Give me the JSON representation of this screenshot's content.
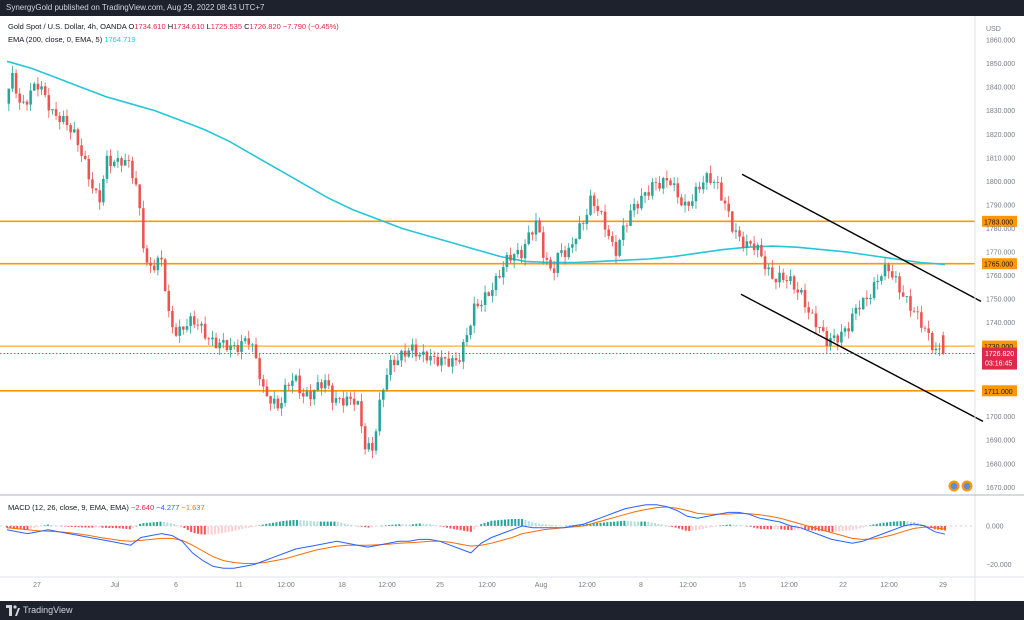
{
  "header": {
    "published_by": "SynergyGold published on TradingView.com, Aug 29, 2022 08:43 UTC+7"
  },
  "footer": {
    "brand": "TradingView"
  },
  "legend": {
    "symbol": "Gold Spot / U.S. Dollar, 4h, OANDA",
    "o_label": "O",
    "o": "1734.610",
    "h_label": "H",
    "h": "1734.610",
    "l_label": "L",
    "l": "1725.535",
    "c_label": "C",
    "c": "1726.820",
    "change": "−7.790 (−0.45%)",
    "ema_label": "EMA (200, close, 0, EMA, 5)",
    "ema_value": "1764.719",
    "macd_label": "MACD (12, 26, close, 9, EMA, EMA)",
    "macd_hist": "−2.640",
    "macd_line": "−4.277",
    "macd_signal": "−1.637"
  },
  "price_axis": {
    "currency": "USD",
    "ticks": [
      "1860.000",
      "1850.000",
      "1840.000",
      "1830.000",
      "1820.000",
      "1810.000",
      "1800.000",
      "1790.000",
      "1780.000",
      "1770.000",
      "1760.000",
      "1750.000",
      "1740.000",
      "1700.000",
      "1690.000",
      "1680.000",
      "1670.000"
    ],
    "levels": [
      "1783.000",
      "1765.000",
      "1730.000",
      "1711.000"
    ],
    "last_price": "1726.820",
    "countdown": "03:16:45"
  },
  "macd_axis": {
    "ticks": [
      "0.000",
      "−20.000"
    ]
  },
  "time_axis": {
    "labels": [
      "27",
      "Jul",
      "6",
      "11",
      "12:00",
      "18",
      "12:00",
      "25",
      "12:00",
      "Aug",
      "12:00",
      "8",
      "12:00",
      "15",
      "12:00",
      "22",
      "12:00",
      "29"
    ]
  },
  "colors": {
    "up": "#26a69a",
    "down": "#ef5350",
    "ema": "#26c6da",
    "level": "#ff9800",
    "trendline": "#000000",
    "macd": "#2962ff",
    "signal": "#ff6d00",
    "hist_pos_strong": "#26a69a",
    "hist_pos_weak": "#b2dfdb",
    "hist_neg_strong": "#ff5252",
    "hist_neg_weak": "#ffcdd2",
    "last_price": "#e0294a"
  },
  "chart_data": {
    "type": "candlestick",
    "symbol": "Gold Spot / U.S. Dollar",
    "timeframe": "4h",
    "ylim": [
      1668,
      1866
    ],
    "horizontal_levels": [
      1783,
      1765,
      1730,
      1711
    ],
    "ema200": [
      1851,
      1848,
      1844,
      1840,
      1836,
      1833,
      1830,
      1826,
      1822,
      1817,
      1811,
      1805,
      1799,
      1793,
      1788,
      1784,
      1780,
      1777,
      1774,
      1771,
      1768,
      1766,
      1765.5,
      1765.5,
      1766,
      1766.5,
      1767,
      1768,
      1769.5,
      1771,
      1772,
      1772.5,
      1772,
      1771,
      1770,
      1768.5,
      1767,
      1765.5,
      1764.7
    ],
    "path": [
      1833,
      1844,
      1832,
      1837,
      1841,
      1836,
      1830,
      1828,
      1823,
      1818,
      1811,
      1800,
      1790,
      1808,
      1809,
      1810,
      1806,
      1793,
      1765,
      1765,
      1766,
      1740,
      1736,
      1740,
      1740,
      1737,
      1734,
      1732,
      1730,
      1728,
      1731,
      1735,
      1725,
      1710,
      1708,
      1705,
      1712,
      1716,
      1710,
      1710,
      1712,
      1714,
      1708,
      1708,
      1706,
      1706,
      1689,
      1687,
      1706,
      1720,
      1725,
      1728,
      1728,
      1725,
      1727,
      1725,
      1723,
      1722,
      1725,
      1735,
      1745,
      1748,
      1754,
      1760,
      1765,
      1768,
      1770,
      1778,
      1782,
      1766,
      1762,
      1772,
      1768,
      1776,
      1784,
      1794,
      1786,
      1778,
      1770,
      1780,
      1786,
      1790,
      1796,
      1800,
      1798,
      1800,
      1795,
      1790,
      1792,
      1798,
      1803,
      1800,
      1790,
      1780,
      1776,
      1774,
      1772,
      1765,
      1760,
      1760,
      1758,
      1754,
      1752,
      1744,
      1738,
      1731,
      1734,
      1736,
      1738,
      1746,
      1750,
      1755,
      1760,
      1762,
      1758,
      1752,
      1745,
      1740,
      1736,
      1729,
      1726.8
    ],
    "last": {
      "open": 1734.61,
      "high": 1734.61,
      "low": 1725.535,
      "close": 1726.82,
      "change": -7.79,
      "change_pct": -0.45
    },
    "ema_last": 1764.719,
    "macd_last": {
      "histogram": -2.64,
      "macd": -4.277,
      "signal": -1.637
    },
    "macd_ylim": [
      -26,
      15
    ],
    "macd_line": [
      -2,
      -3,
      -4,
      -3,
      -2,
      -3,
      -4,
      -5,
      -6,
      -7,
      -8,
      -9,
      -10,
      -6,
      -5,
      -4,
      -5,
      -8,
      -14,
      -18,
      -21,
      -22,
      -22,
      -21,
      -20,
      -18,
      -16,
      -14,
      -12,
      -11,
      -10,
      -9,
      -8,
      -9,
      -10,
      -11,
      -10,
      -9,
      -8,
      -8,
      -7,
      -7,
      -8,
      -10,
      -12,
      -14,
      -9,
      -6,
      -4,
      -2,
      0,
      -1,
      -1,
      -1,
      -1,
      0,
      1,
      3,
      5,
      7,
      9,
      10,
      11,
      11,
      10,
      8,
      5,
      4,
      5,
      6,
      7,
      7,
      6,
      4,
      3,
      2,
      0,
      -1,
      -3,
      -5,
      -7,
      -8,
      -9,
      -8,
      -6,
      -4,
      -2,
      0,
      1,
      0,
      -3,
      -4.3
    ],
    "signal_line": [
      -1,
      -1.5,
      -2,
      -2.5,
      -2.8,
      -3,
      -3.5,
      -4.2,
      -5,
      -6,
      -6.8,
      -7.6,
      -8,
      -7.5,
      -7,
      -6.5,
      -6.5,
      -7.5,
      -10,
      -13,
      -16,
      -18,
      -19,
      -19.5,
      -19.5,
      -19,
      -18,
      -17,
      -15.5,
      -14,
      -12.5,
      -11.5,
      -10.5,
      -10,
      -10,
      -10,
      -9.8,
      -9.5,
      -9,
      -8.7,
      -8.4,
      -8,
      -8,
      -8.5,
      -9.5,
      -10.5,
      -10,
      -9,
      -7.5,
      -6,
      -4,
      -3,
      -2,
      -1.5,
      -1,
      -0.5,
      0,
      1.5,
      3,
      4.5,
      6,
      7.5,
      8.5,
      9.5,
      9.8,
      9.2,
      8,
      6.5,
      6,
      6,
      6.2,
      6.5,
      6.3,
      5.8,
      5,
      4,
      2.5,
      1,
      -0.5,
      -2,
      -3.5,
      -5,
      -6.5,
      -7,
      -6.8,
      -5.8,
      -4.5,
      -2.8,
      -1.3,
      -0.6,
      -1,
      -1.637
    ]
  }
}
